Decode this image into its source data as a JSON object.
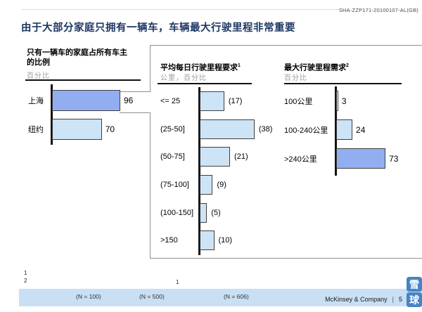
{
  "header": {
    "doc_code": "SHA-ZZP171-20100107-AL(GB)"
  },
  "title": "由于大部分家庭只拥有一辆车，车辆最大行驶里程非常重要",
  "chart_data": [
    {
      "id": "single-car-household-share",
      "type": "bar",
      "orientation": "horizontal",
      "title": "只有一辆车的家庭占所有车主的比例",
      "unit": "百分比",
      "categories": [
        "上海",
        "纽约"
      ],
      "values": [
        96,
        70
      ],
      "value_labels": [
        "96",
        "70"
      ]
    },
    {
      "id": "avg-daily-mileage-requirement",
      "type": "bar",
      "orientation": "horizontal",
      "title": "平均每日行驶里程要求",
      "footnote_mark": "1",
      "unit": "公里，百分比",
      "categories": [
        "<= 25",
        "(25-50]",
        "(50-75]",
        "(75-100]",
        "(100-150]",
        ">150"
      ],
      "values": [
        17,
        38,
        21,
        9,
        5,
        10
      ],
      "value_labels": [
        "(17)",
        "(38)",
        "(21)",
        "(9)",
        "(5)",
        "(10)"
      ]
    },
    {
      "id": "max-mileage-need",
      "type": "bar",
      "orientation": "horizontal",
      "title": "最大行驶里程需求",
      "footnote_mark": "2",
      "unit": "百分比",
      "categories": [
        "100公里",
        "100-240公里",
        ">240公里"
      ],
      "values": [
        3,
        24,
        73
      ],
      "value_labels": [
        "3",
        "24",
        "73"
      ]
    }
  ],
  "footnotes": {
    "marks": [
      "1",
      "2",
      "1"
    ]
  },
  "samples": [
    "(N = 100)",
    "(N = 500)",
    "(N = 606)"
  ],
  "footer": {
    "brand": "McKinsey & Company",
    "divider": "|",
    "page": "5"
  },
  "logo": {
    "top_char": "雪",
    "bottom_char": "球"
  },
  "colors": {
    "title_navy": "#1f3864",
    "bar_dark_blue": "#93aef0",
    "bar_light_blue": "#cde3f6",
    "footer_band_blue": "#c9dff4",
    "logo_blue": "#4583c5",
    "muted_gray": "#9b9b9b"
  }
}
